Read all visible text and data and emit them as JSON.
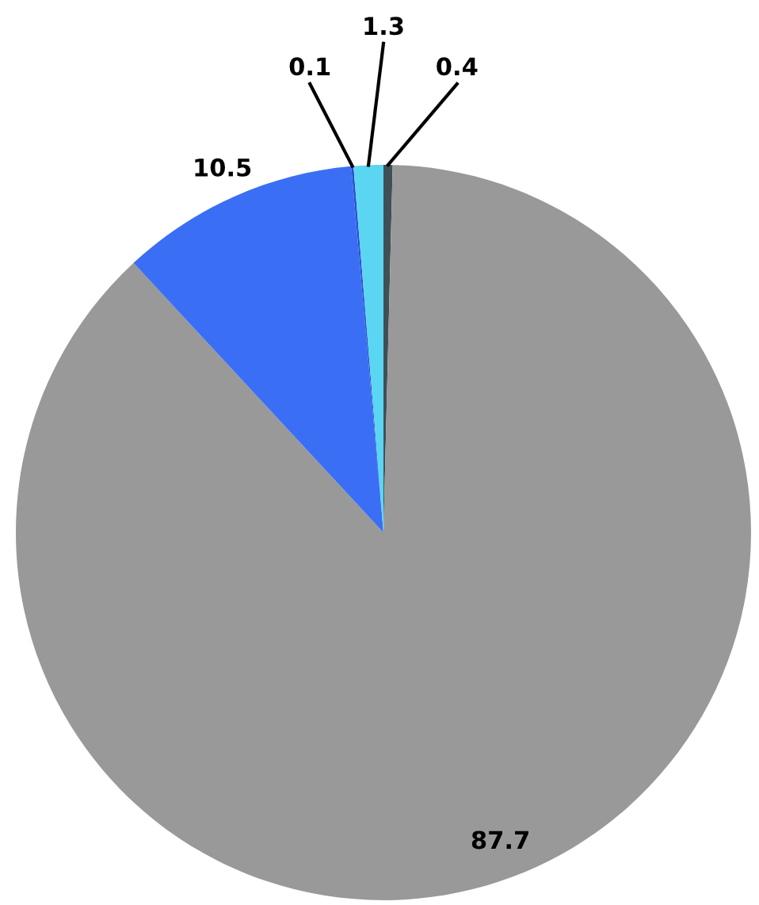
{
  "chart_data": {
    "type": "pie",
    "categories": [
      null,
      null,
      null,
      null,
      null
    ],
    "values": [
      0.4,
      87.7,
      10.5,
      0.1,
      1.3
    ],
    "colors": [
      "#3f4f55",
      "#999999",
      "#3a6ff5",
      "#2a4fd0",
      "#5ad6f2"
    ],
    "data_labels": true,
    "legend": false
  }
}
